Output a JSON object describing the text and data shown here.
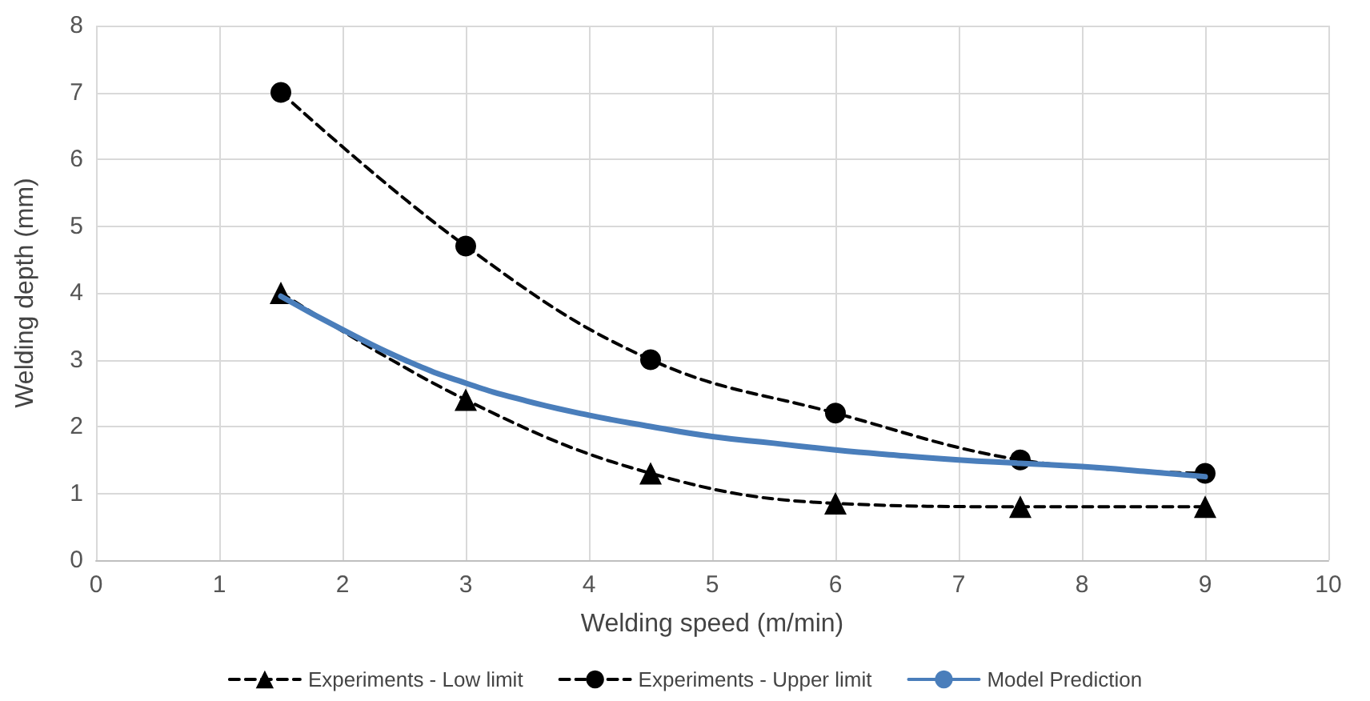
{
  "chart_data": {
    "type": "line",
    "xlabel": "Welding speed (m/min)",
    "ylabel": "Welding depth (mm)",
    "xlim": [
      0,
      10
    ],
    "xticks": [
      0,
      1,
      2,
      3,
      4,
      5,
      6,
      7,
      8,
      9,
      10
    ],
    "ylim": [
      0,
      8
    ],
    "yticks": [
      0,
      1,
      2,
      3,
      4,
      5,
      6,
      7,
      8
    ],
    "grid": true,
    "legend": "bottom",
    "series": [
      {
        "name": "Experiments - Low limit",
        "color": "#000000",
        "marker": "triangle",
        "line_style": "dashed",
        "x": [
          1.5,
          3,
          4.5,
          6,
          7.5,
          9
        ],
        "values": [
          4,
          2.4,
          1.3,
          0.85,
          0.8,
          0.8
        ]
      },
      {
        "name": "Experiments - Upper limit",
        "color": "#000000",
        "marker": "circle",
        "line_style": "dashed",
        "x": [
          1.5,
          3,
          4.5,
          6,
          7.5,
          9
        ],
        "values": [
          7,
          4.7,
          3,
          2.2,
          1.5,
          1.3
        ]
      },
      {
        "name": "Model Prediction",
        "color": "#4a7ebb",
        "marker": "none",
        "line_style": "solid",
        "x": [
          1.5,
          2,
          2.5,
          3,
          3.5,
          4,
          4.5,
          5,
          5.5,
          6,
          6.5,
          7,
          7.5,
          8,
          8.5,
          9
        ],
        "values": [
          3.95,
          3.45,
          3.0,
          2.65,
          2.38,
          2.17,
          2.0,
          1.85,
          1.75,
          1.65,
          1.57,
          1.5,
          1.45,
          1.4,
          1.33,
          1.25
        ]
      }
    ]
  }
}
